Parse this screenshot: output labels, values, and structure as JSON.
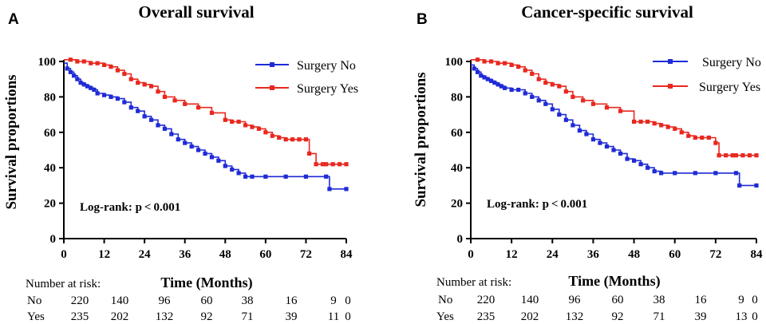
{
  "chart_data": [
    {
      "type": "line",
      "panel_label": "A",
      "title": "Overall survival",
      "xlabel": "Time (Months)",
      "ylabel": "Survival proportions",
      "xlim": [
        0,
        84
      ],
      "ylim": [
        0,
        100
      ],
      "xticks": [
        "0",
        "12",
        "24",
        "36",
        "48",
        "60",
        "72",
        "84"
      ],
      "yticks": [
        "0",
        "20",
        "40",
        "60",
        "80",
        "100"
      ],
      "annotation": "Log-rank: p < 0.001",
      "legend_position": "top-right",
      "series": [
        {
          "name": "Surgery No",
          "color": "#1f2bd6",
          "x": [
            0,
            1,
            2,
            3,
            4,
            5,
            6,
            7,
            8,
            9,
            10,
            12,
            14,
            16,
            18,
            20,
            22,
            24,
            26,
            28,
            30,
            32,
            34,
            36,
            38,
            40,
            42,
            44,
            46,
            48,
            50,
            52,
            54,
            56,
            60,
            66,
            72,
            78,
            79,
            84
          ],
          "y": [
            99,
            96,
            94,
            92,
            90,
            88,
            87,
            86,
            85,
            84,
            82,
            81,
            80,
            79,
            77,
            74,
            72,
            69,
            67,
            64,
            62,
            59,
            56,
            54,
            52,
            50,
            48,
            46,
            44,
            41,
            39,
            37,
            35,
            35,
            35,
            35,
            35,
            35,
            28,
            28
          ]
        },
        {
          "name": "Surgery Yes",
          "color": "#e8281e",
          "x": [
            0,
            2,
            4,
            6,
            8,
            10,
            12,
            14,
            16,
            18,
            20,
            22,
            24,
            26,
            28,
            30,
            33,
            36,
            40,
            44,
            48,
            50,
            52,
            54,
            56,
            58,
            60,
            62,
            64,
            66,
            68,
            70,
            72,
            73,
            75,
            77,
            78,
            80,
            82,
            84
          ],
          "y": [
            101,
            101,
            100,
            100,
            99,
            99,
            98,
            97,
            95,
            93,
            90,
            88,
            87,
            86,
            83,
            80,
            78,
            76,
            74,
            71,
            67,
            66,
            66,
            64,
            63,
            62,
            60,
            58,
            57,
            56,
            56,
            56,
            56,
            48,
            42,
            42,
            42,
            42,
            42,
            42
          ]
        }
      ],
      "risk_table": {
        "header": "Number at risk:",
        "rows": [
          {
            "label": "No",
            "values": [
              "220",
              "140",
              "96",
              "60",
              "38",
              "16",
              "9",
              "0"
            ]
          },
          {
            "label": "Yes",
            "values": [
              "235",
              "202",
              "132",
              "92",
              "71",
              "39",
              "11",
              "0"
            ]
          }
        ]
      }
    },
    {
      "type": "line",
      "panel_label": "B",
      "title": "Cancer-specific survival",
      "xlabel": "Time (Months)",
      "ylabel": "Survival proportions",
      "xlim": [
        0,
        84
      ],
      "ylim": [
        0,
        100
      ],
      "xticks": [
        "0",
        "12",
        "24",
        "36",
        "48",
        "60",
        "72",
        "84"
      ],
      "yticks": [
        "0",
        "20",
        "40",
        "60",
        "80",
        "100"
      ],
      "annotation": "Log-rank: p < 0.001",
      "legend_position": "top-right",
      "series": [
        {
          "name": "Surgery No",
          "color": "#1f2bd6",
          "x": [
            0,
            1,
            2,
            3,
            4,
            5,
            6,
            7,
            8,
            9,
            10,
            12,
            14,
            16,
            18,
            20,
            22,
            24,
            26,
            28,
            30,
            32,
            34,
            36,
            38,
            40,
            42,
            44,
            46,
            48,
            50,
            52,
            54,
            56,
            60,
            66,
            72,
            78,
            79,
            84
          ],
          "y": [
            98,
            96,
            94,
            92,
            91,
            90,
            89,
            88,
            87,
            86,
            85,
            84,
            84,
            82,
            80,
            78,
            76,
            73,
            70,
            67,
            64,
            61,
            59,
            56,
            54,
            52,
            50,
            48,
            45,
            44,
            42,
            40,
            38,
            37,
            37,
            37,
            37,
            37,
            30,
            30
          ]
        },
        {
          "name": "Surgery Yes",
          "color": "#e8281e",
          "x": [
            0,
            2,
            4,
            6,
            8,
            10,
            12,
            14,
            16,
            18,
            20,
            22,
            24,
            26,
            28,
            30,
            33,
            36,
            40,
            44,
            48,
            50,
            52,
            54,
            56,
            58,
            60,
            62,
            64,
            66,
            68,
            70,
            72,
            73,
            75,
            77,
            78,
            80,
            82,
            84
          ],
          "y": [
            101,
            101,
            100,
            100,
            99,
            99,
            98,
            97,
            95,
            93,
            90,
            88,
            87,
            86,
            83,
            80,
            78,
            76,
            74,
            72,
            66,
            66,
            66,
            65,
            64,
            63,
            62,
            60,
            58,
            57,
            57,
            57,
            54,
            47,
            47,
            47,
            47,
            47,
            47,
            47
          ]
        }
      ],
      "risk_table": {
        "header": "Number at risk:",
        "rows": [
          {
            "label": "No",
            "values": [
              "220",
              "140",
              "96",
              "60",
              "38",
              "16",
              "9",
              "0"
            ]
          },
          {
            "label": "Yes",
            "values": [
              "235",
              "202",
              "132",
              "92",
              "71",
              "39",
              "13",
              "0"
            ]
          }
        ]
      }
    }
  ]
}
